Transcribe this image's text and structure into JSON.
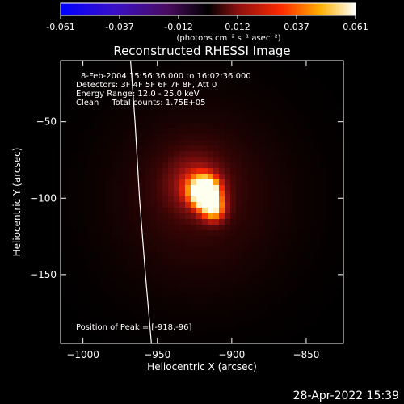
{
  "colorbar": {
    "ticks": [
      "-0.061",
      "-0.037",
      "-0.012",
      "0.012",
      "0.037",
      "0.061"
    ],
    "unit_label": "(photons cm⁻² s⁻¹ asec⁻²)"
  },
  "chart_data": {
    "type": "heatmap",
    "title": "Reconstructed RHESSI Image",
    "xlabel": "Heliocentric X (arcsec)",
    "ylabel": "Heliocentric Y (arcsec)",
    "xlim": [
      -1015,
      -825
    ],
    "ylim": [
      -195,
      -10
    ],
    "xticks": [
      -1000,
      -950,
      -900,
      -850
    ],
    "yticks": [
      -50,
      -100,
      -150
    ],
    "colormap": "hot",
    "colorbar_range": [
      -0.061,
      0.061
    ],
    "info_lines": [
      "8-Feb-2004 15:56:36.000 to 16:02:36.000",
      "Detectors: 3F 4F 5F 6F 7F 8F, Att 0",
      "Energy Range: 12.0 - 25.0 keV",
      "Clean     Total counts: 1.75E+05"
    ],
    "peak_label": "Position of Peak = [-918,-96]",
    "peak": {
      "x": -918,
      "y": -96
    },
    "limb_curve": [
      {
        "x": -968,
        "y": -10
      },
      {
        "x": -965,
        "y": -50
      },
      {
        "x": -962,
        "y": -100
      },
      {
        "x": -958,
        "y": -150
      },
      {
        "x": -954,
        "y": -195
      }
    ],
    "sources": [
      {
        "x": -918,
        "y": -96,
        "sigma": 7,
        "amp": 1.0
      },
      {
        "x": -912,
        "y": -108,
        "sigma": 6,
        "amp": 0.55
      },
      {
        "x": -925,
        "y": -90,
        "sigma": 15,
        "amp": 0.35
      },
      {
        "x": -922,
        "y": -100,
        "sigma": 42,
        "amp": 0.22
      }
    ]
  },
  "footer": {
    "timestamp": "28-Apr-2022 15:39"
  },
  "colors": {
    "background": "#000000",
    "axes": "#ffffff"
  }
}
